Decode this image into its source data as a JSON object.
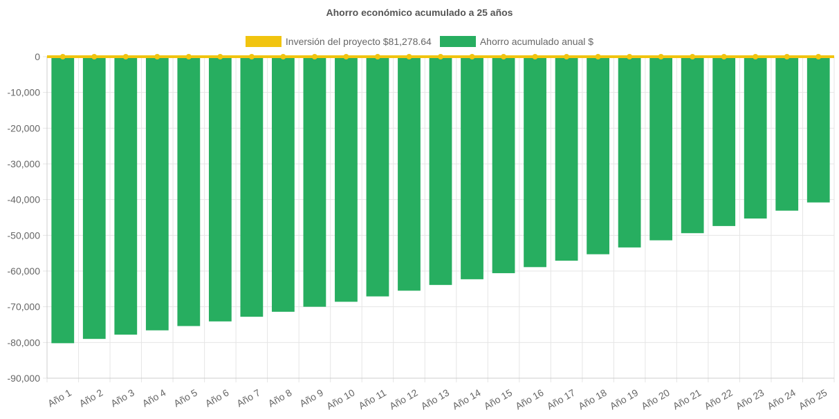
{
  "colors": {
    "bar": "#27ae60",
    "line": "#f1c40f",
    "grid": "#e5e5e5",
    "axis": "#cccccc"
  },
  "chart_data": {
    "type": "bar",
    "title": "Ahorro económico acumulado a 25 años",
    "categories": [
      "Año 1",
      "Año 2",
      "Año 3",
      "Año 4",
      "Año 5",
      "Año 6",
      "Año 7",
      "Año 8",
      "Año 9",
      "Año 10",
      "Año 11",
      "Año 12",
      "Año 13",
      "Año 14",
      "Año 15",
      "Año 16",
      "Año 17",
      "Año 18",
      "Año 19",
      "Año 20",
      "Año 21",
      "Año 22",
      "Año 23",
      "Año 24",
      "Año 25"
    ],
    "series": [
      {
        "name": "Inversión del proyecto $81,278.64",
        "type": "line",
        "color": "#f1c40f",
        "values": [
          0,
          0,
          0,
          0,
          0,
          0,
          0,
          0,
          0,
          0,
          0,
          0,
          0,
          0,
          0,
          0,
          0,
          0,
          0,
          0,
          0,
          0,
          0,
          0,
          0
        ]
      },
      {
        "name": "Ahorro acumulado anual $",
        "type": "bar",
        "color": "#27ae60",
        "values": [
          -80200,
          -79000,
          -77800,
          -76600,
          -75400,
          -74100,
          -72800,
          -71400,
          -70000,
          -68600,
          -67100,
          -65500,
          -63900,
          -62300,
          -60600,
          -58900,
          -57100,
          -55300,
          -53400,
          -51400,
          -49400,
          -47400,
          -45300,
          -43100,
          -40800
        ]
      }
    ],
    "ylim": [
      -90000,
      0
    ],
    "yticks": [
      0,
      -10000,
      -20000,
      -30000,
      -40000,
      -50000,
      -60000,
      -70000,
      -80000,
      -90000
    ],
    "ytick_labels": [
      "0",
      "-10,000",
      "-20,000",
      "-30,000",
      "-40,000",
      "-50,000",
      "-60,000",
      "-70,000",
      "-80,000",
      "-90,000"
    ],
    "legend_position": "top",
    "grid": true
  }
}
